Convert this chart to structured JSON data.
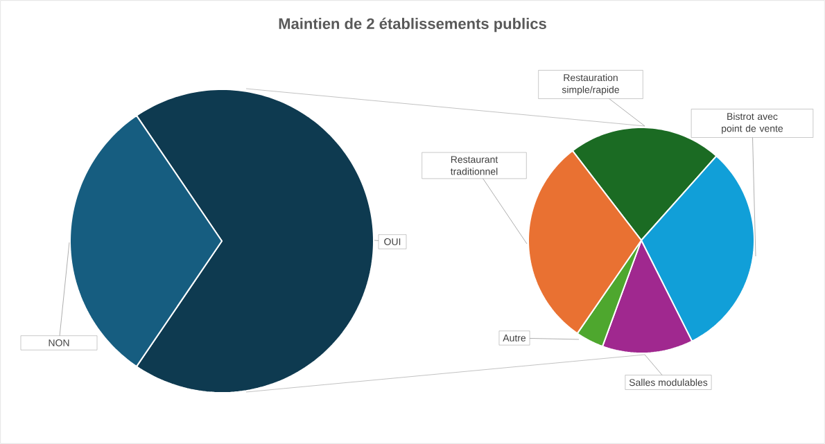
{
  "chart_data": [
    {
      "type": "pie",
      "title": "Maintien de 2 établissements publics",
      "categories": [
        "OUI",
        "NON"
      ],
      "values": [
        69,
        31
      ],
      "colors": [
        "#0e3a50",
        "#165d80"
      ]
    },
    {
      "type": "pie",
      "categories": [
        "Restauration simple/rapide",
        "Bistrot avec point de vente",
        "Salles modulables",
        "Autre",
        "Restaurant traditionnel"
      ],
      "values": [
        22,
        31,
        13,
        4,
        30
      ],
      "colors": [
        "#1b6b23",
        "#119fd8",
        "#a0288f",
        "#4ea72e",
        "#e97132"
      ]
    }
  ]
}
